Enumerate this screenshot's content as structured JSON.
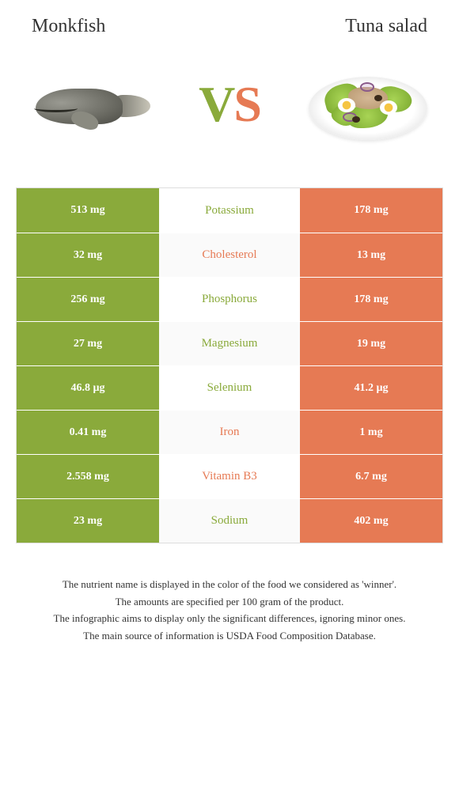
{
  "left": {
    "title": "Monkfish",
    "color": "#8aaa3b"
  },
  "right": {
    "title": "Tuna salad",
    "color": "#e67a54"
  },
  "vs": {
    "v": "V",
    "s": "S"
  },
  "nutrients": [
    {
      "name": "Potassium",
      "left": "513 mg",
      "right": "178 mg",
      "winner": "left"
    },
    {
      "name": "Cholesterol",
      "left": "32 mg",
      "right": "13 mg",
      "winner": "right"
    },
    {
      "name": "Phosphorus",
      "left": "256 mg",
      "right": "178 mg",
      "winner": "left"
    },
    {
      "name": "Magnesium",
      "left": "27 mg",
      "right": "19 mg",
      "winner": "left"
    },
    {
      "name": "Selenium",
      "left": "46.8 µg",
      "right": "41.2 µg",
      "winner": "left"
    },
    {
      "name": "Iron",
      "left": "0.41 mg",
      "right": "1 mg",
      "winner": "right"
    },
    {
      "name": "Vitamin B3",
      "left": "2.558 mg",
      "right": "6.7 mg",
      "winner": "right"
    },
    {
      "name": "Sodium",
      "left": "23 mg",
      "right": "402 mg",
      "winner": "left"
    }
  ],
  "footer": {
    "line1": "The nutrient name is displayed in the color of the food we considered as 'winner'.",
    "line2": "The amounts are specified per 100 gram of the product.",
    "line3": "The infographic aims to display only the significant differences, ignoring minor ones.",
    "line4": "The main source of information is USDA Food Composition Database."
  }
}
